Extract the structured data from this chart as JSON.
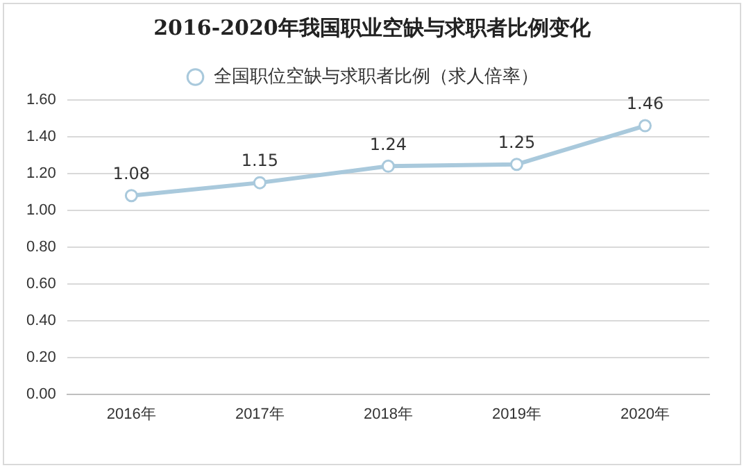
{
  "chart_data": {
    "type": "line",
    "title": "2016-2020年我国职业空缺与求职者比例变化",
    "categories": [
      "2016年",
      "2017年",
      "2018年",
      "2019年",
      "2020年"
    ],
    "series": [
      {
        "name": "全国职位空缺与求职者比例（求人倍率）",
        "color": "#a9c9dc",
        "values": [
          1.08,
          1.15,
          1.24,
          1.25,
          1.46
        ]
      }
    ],
    "ylim": [
      0,
      1.6
    ],
    "yticks": [
      {
        "value": 0,
        "label": "0.00"
      },
      {
        "value": 0.2,
        "label": "0.20"
      },
      {
        "value": 0.4,
        "label": "0.40"
      },
      {
        "value": 0.6,
        "label": "0.60"
      },
      {
        "value": 0.8,
        "label": "0.80"
      },
      {
        "value": 1.0,
        "label": "1.00"
      },
      {
        "value": 1.2,
        "label": "1.20"
      },
      {
        "value": 1.4,
        "label": "1.40"
      },
      {
        "value": 1.6,
        "label": "1.60"
      }
    ],
    "grid": "y",
    "legend": "top",
    "marker": "circle",
    "line_style": "solid",
    "data_labels": true
  }
}
